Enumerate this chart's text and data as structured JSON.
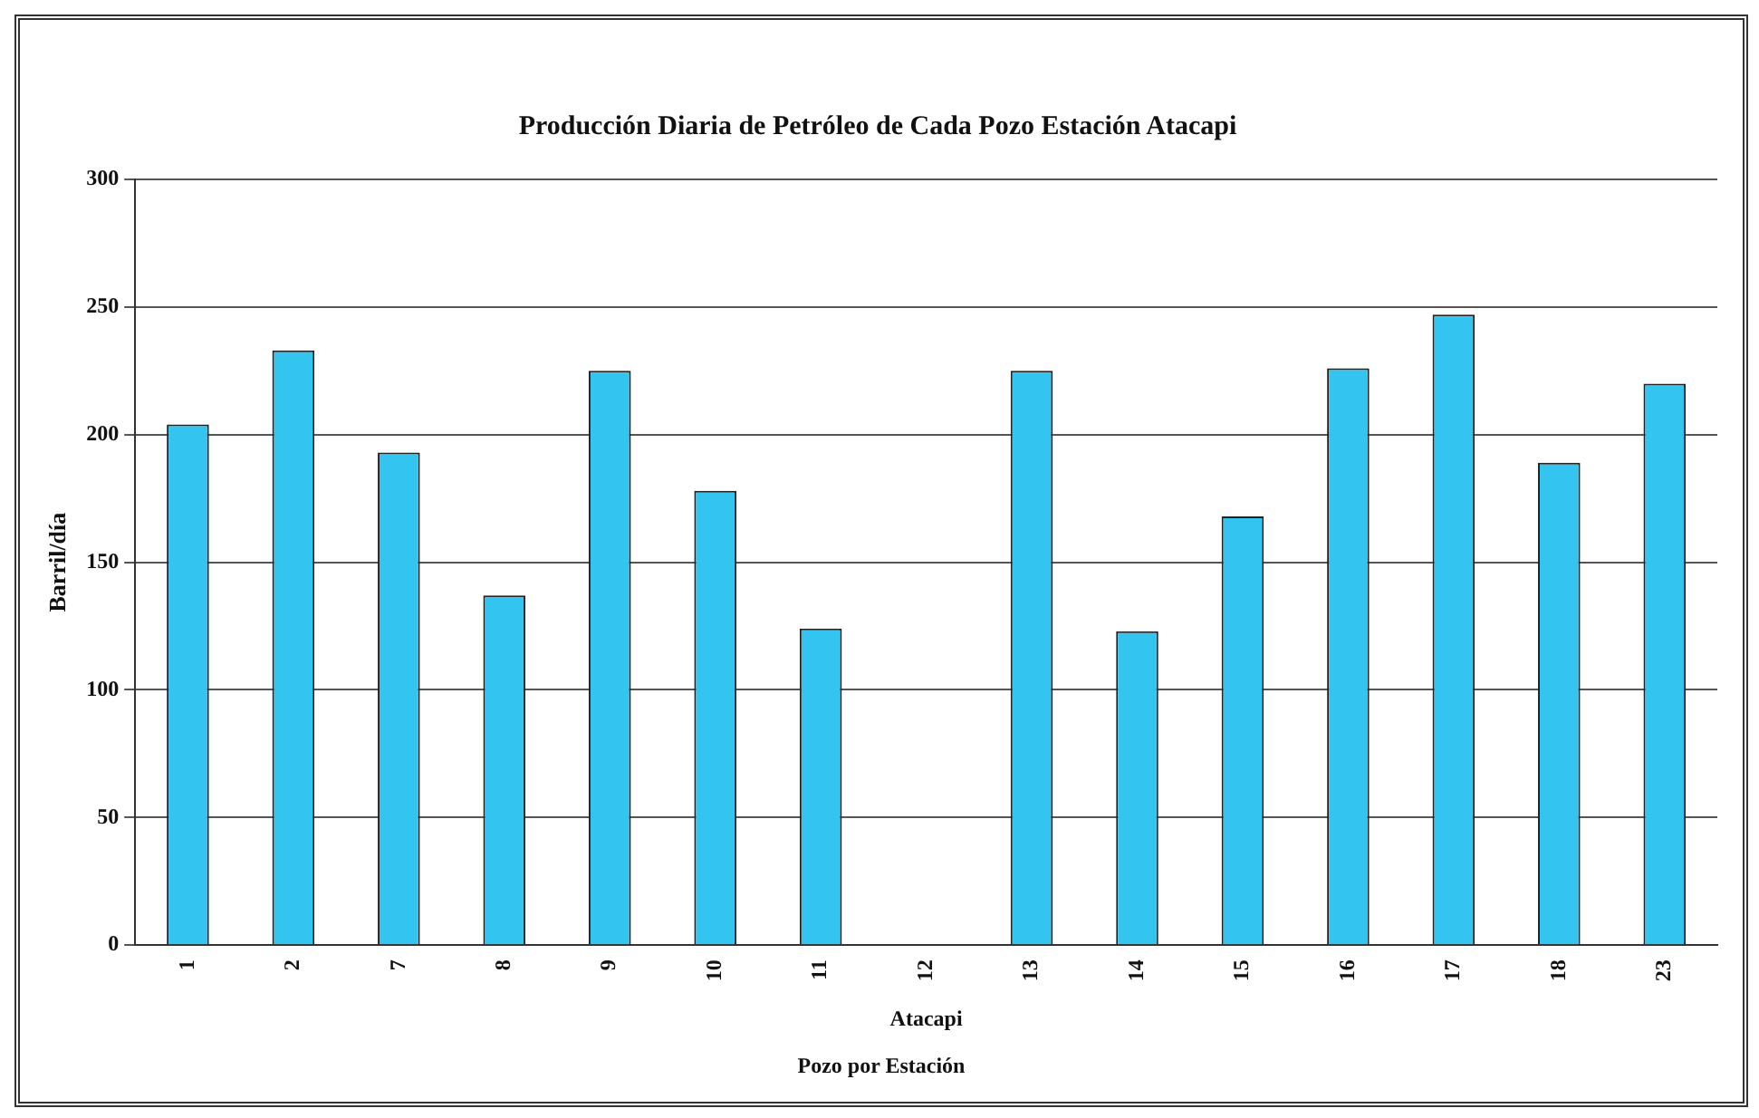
{
  "chart_data": {
    "type": "bar",
    "title": "Producción Diaria de Petróleo de Cada Pozo Estación Atacapi",
    "xlabel": "Atacapi",
    "ylabel": "Barril/día",
    "annotations": [
      "Pozo por Estación"
    ],
    "categories": [
      "1",
      "2",
      "7",
      "8",
      "9",
      "10",
      "11",
      "12",
      "13",
      "14",
      "15",
      "16",
      "17",
      "18",
      "23"
    ],
    "values": [
      204,
      233,
      193,
      137,
      225,
      178,
      124,
      null,
      225,
      123,
      168,
      226,
      247,
      189,
      220
    ],
    "color": "#33c5f0",
    "ylim": [
      0,
      300
    ],
    "yticks": [
      0,
      50,
      100,
      150,
      200,
      250,
      300
    ],
    "grid": "y",
    "legend": false
  }
}
